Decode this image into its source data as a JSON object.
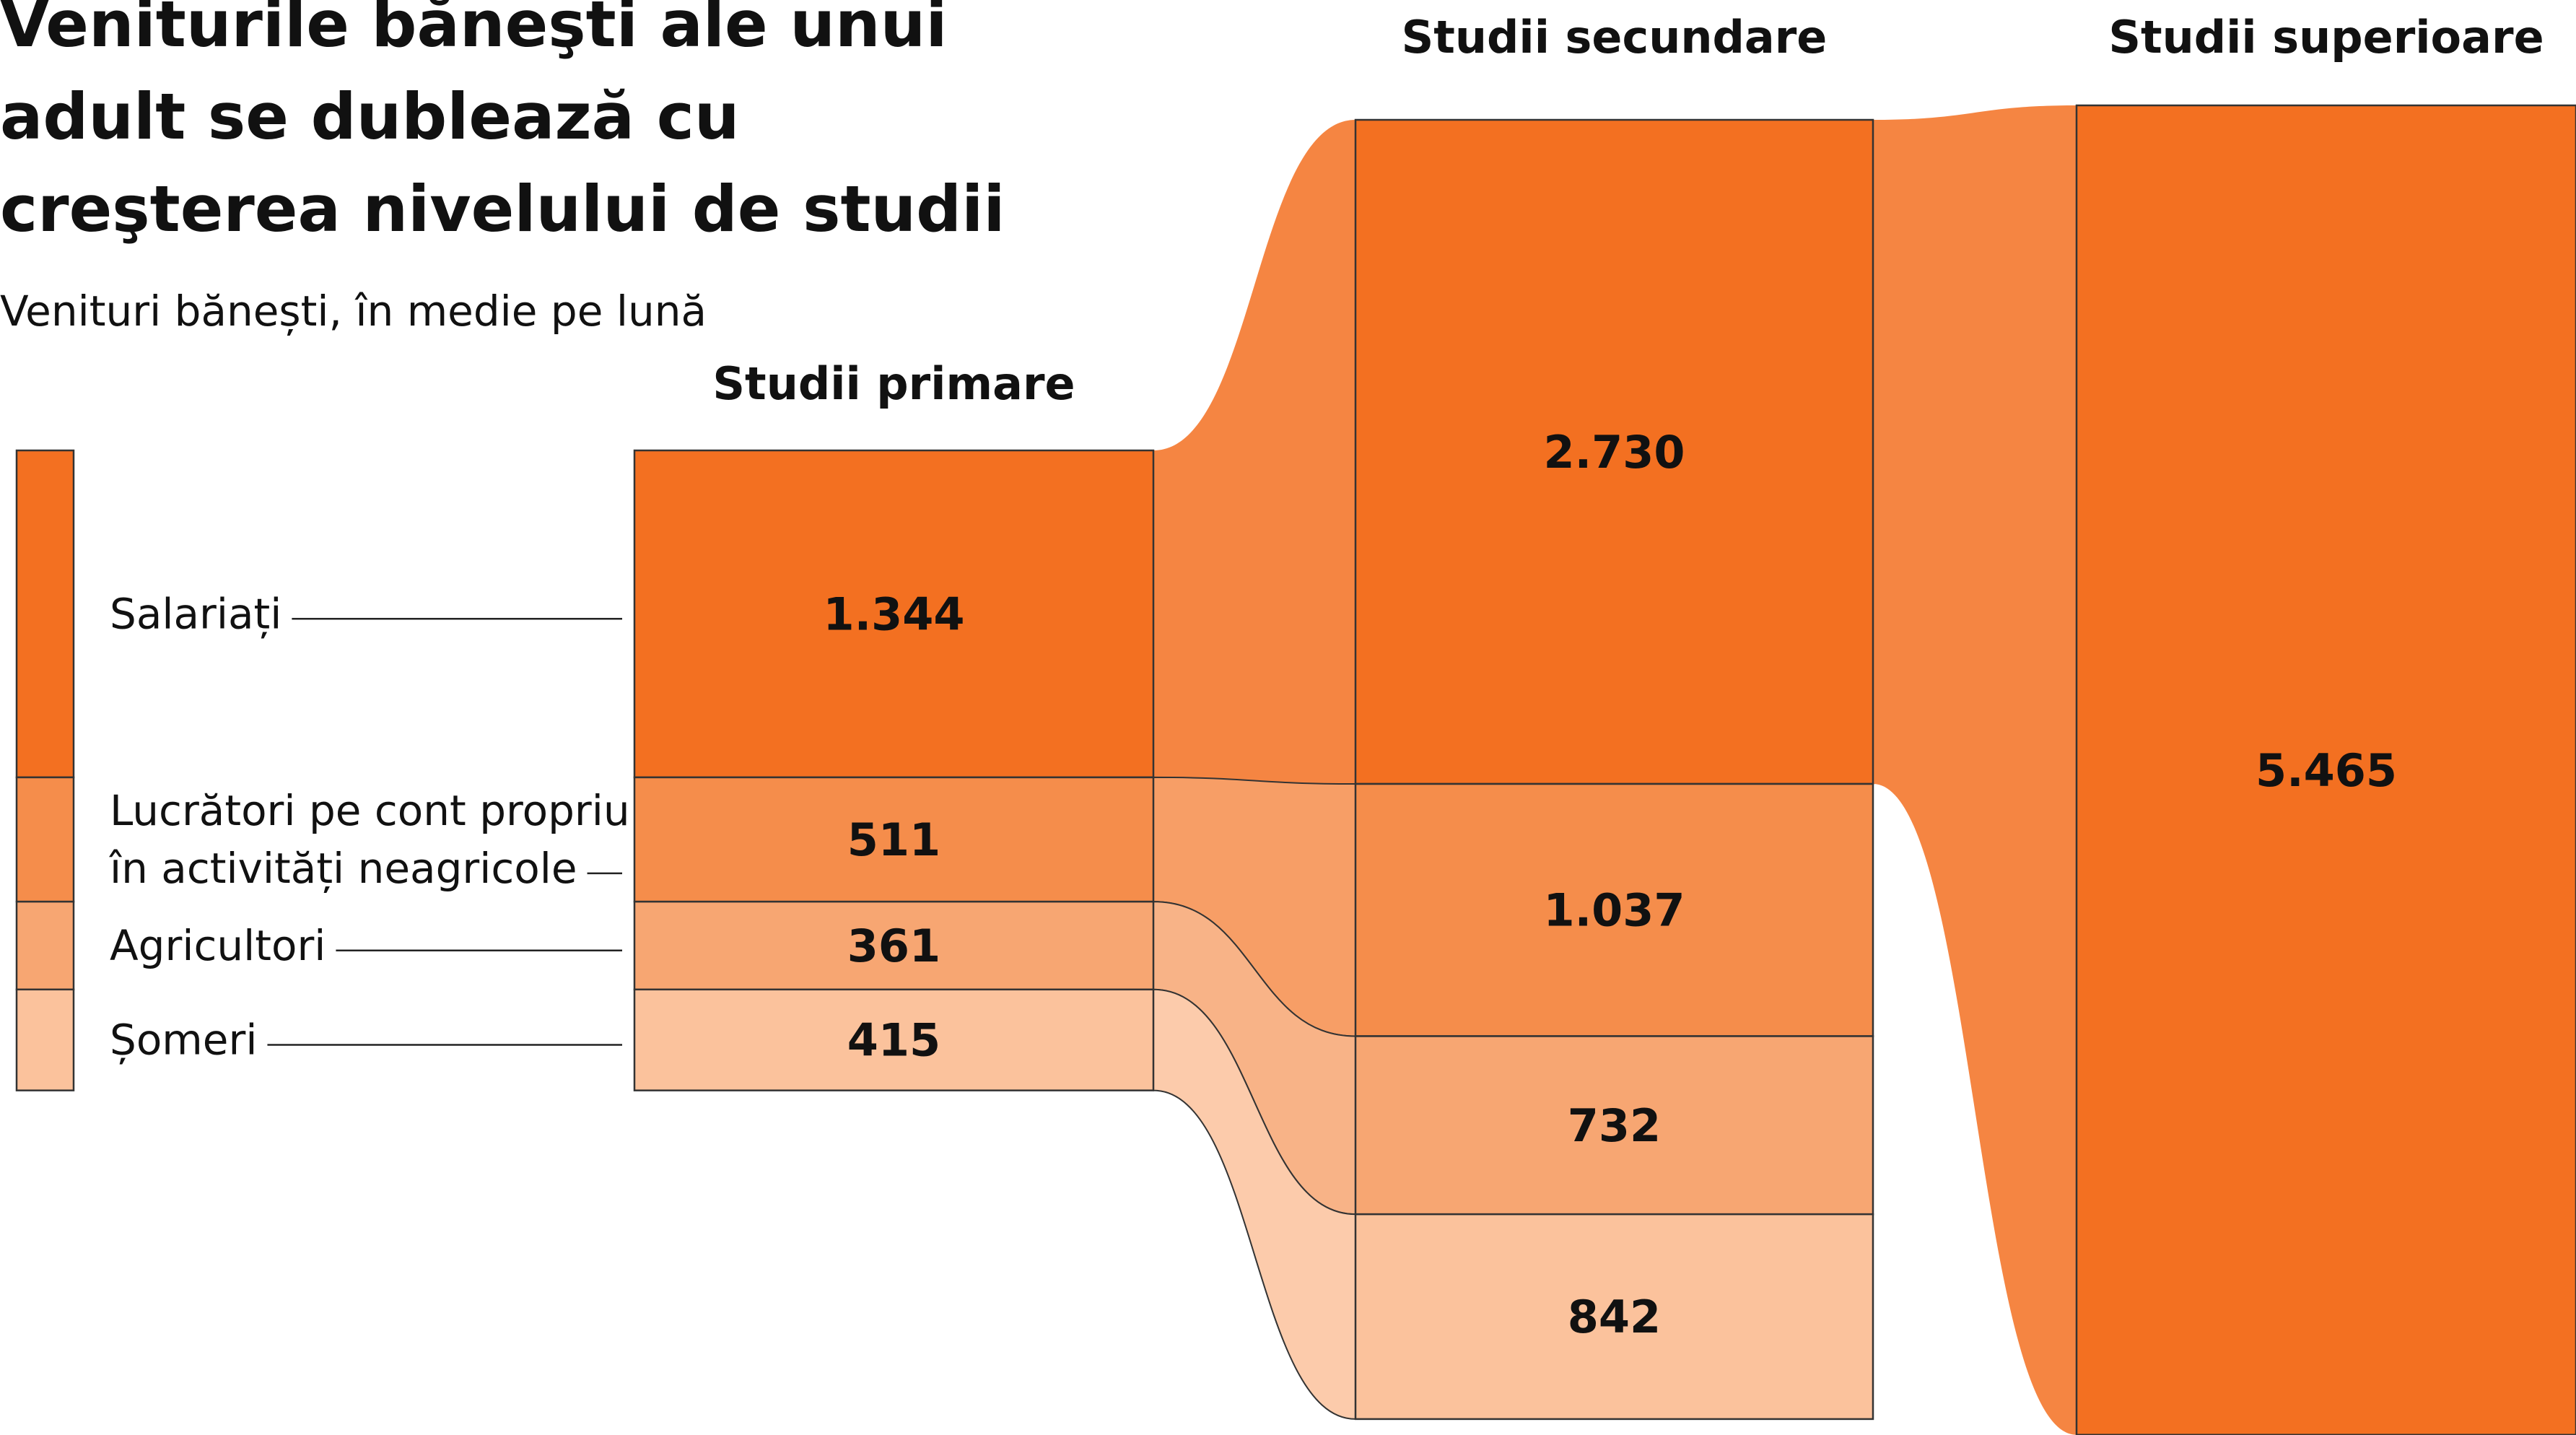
{
  "chart_data": {
    "type": "flow",
    "title": "Veniturile băneşti ale unui adult se dublează cu creşterea nivelului de studii",
    "subtitle": "Venituri bănești, în medie pe lună",
    "categories": [
      "Studii primare",
      "Studii secundare",
      "Studii superioare"
    ],
    "series": [
      {
        "name": "Salariați",
        "color": "#f37021",
        "values": [
          1344,
          2730,
          5465
        ],
        "value_labels": [
          "1.344",
          "2.730",
          "5.465"
        ]
      },
      {
        "name": "Lucrători pe cont propriu în activități neagricole",
        "color": "#f58d4b",
        "values": [
          511,
          1037,
          null
        ],
        "value_labels": [
          "511",
          "1.037",
          null
        ]
      },
      {
        "name": "Agricultori",
        "color": "#f7a672",
        "values": [
          361,
          732,
          null
        ],
        "value_labels": [
          "361",
          "732",
          null
        ]
      },
      {
        "name": "Șomeri",
        "color": "#fbc29c",
        "values": [
          415,
          842,
          null
        ],
        "value_labels": [
          "415",
          "842",
          null
        ]
      }
    ]
  }
}
